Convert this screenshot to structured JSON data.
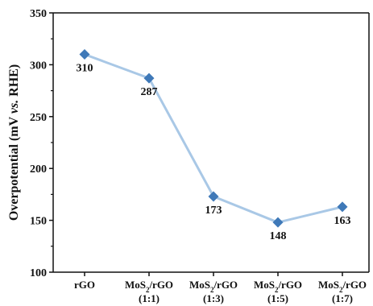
{
  "chart_data": {
    "type": "line",
    "title": "",
    "xlabel": "",
    "ylabel_parts": [
      "Overpotential (mV ",
      "vs.",
      " RHE)"
    ],
    "ylim": [
      100,
      350
    ],
    "yticks": [
      100,
      150,
      200,
      250,
      300,
      350
    ],
    "categories": [
      {
        "main": "rGO",
        "sub": "",
        "ratio": ""
      },
      {
        "main": "MoS",
        "sub": "2",
        "main2": "/rGO",
        "ratio": "(1:1)"
      },
      {
        "main": "MoS",
        "sub": "2",
        "main2": "/rGO",
        "ratio": "(1:3)"
      },
      {
        "main": "MoS",
        "sub": "2",
        "main2": "/rGO",
        "ratio": "(1:5)"
      },
      {
        "main": "MoS",
        "sub": "2",
        "main2": "/rGO",
        "ratio": "(1:7)"
      }
    ],
    "series": [
      {
        "values": [
          310,
          287,
          173,
          148,
          163
        ],
        "labels": [
          "310",
          "287",
          "173",
          "148",
          "163"
        ],
        "line_color": "#a9c8e6",
        "marker_color": "#3f79b8",
        "marker": "diamond"
      }
    ],
    "grid": false,
    "legend": "none"
  }
}
